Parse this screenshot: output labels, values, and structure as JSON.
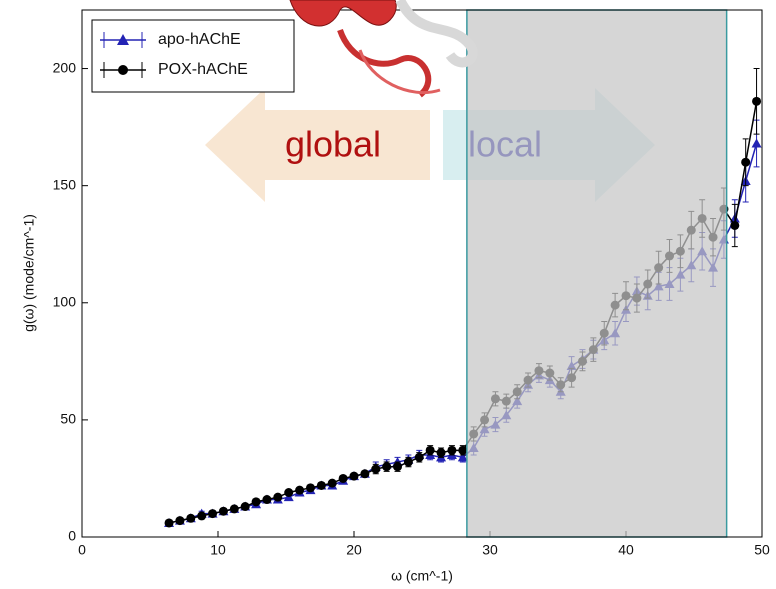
{
  "chart_data": {
    "type": "line",
    "xlabel": "ω (cm^-1)",
    "ylabel": "g(ω) (mode/cm^-1)",
    "xlim": [
      0,
      50
    ],
    "ylim": [
      0,
      225
    ],
    "xticks": [
      0,
      10,
      20,
      30,
      40,
      50
    ],
    "yticks": [
      0,
      50,
      100,
      150,
      200
    ],
    "legend": "upper left",
    "highlight_region": [
      28.3,
      47.4
    ],
    "annotations": [
      "global",
      "local"
    ],
    "x": [
      6.4,
      7.2,
      8.0,
      8.8,
      9.6,
      10.4,
      11.2,
      12.0,
      12.8,
      13.6,
      14.4,
      15.2,
      16.0,
      16.8,
      17.6,
      18.4,
      19.2,
      20.0,
      20.8,
      21.6,
      22.4,
      23.2,
      24.0,
      24.8,
      25.6,
      26.4,
      27.2,
      28.0,
      28.8,
      29.6,
      30.4,
      31.2,
      32.0,
      32.8,
      33.6,
      34.4,
      35.2,
      36.0,
      36.8,
      37.6,
      38.4,
      39.2,
      40.0,
      40.8,
      41.6,
      42.4,
      43.2,
      44.0,
      44.8,
      45.6,
      46.4,
      47.2,
      48.0,
      48.8,
      49.6
    ],
    "series": [
      {
        "name": "apo-hAChE",
        "color": "#2323b4",
        "marker": "triangle",
        "values": [
          6,
          7,
          8,
          10,
          10,
          11,
          12,
          13,
          14,
          16,
          16,
          17,
          19,
          20,
          22,
          22,
          24,
          26,
          27,
          30,
          31,
          32,
          33,
          35,
          35,
          34,
          35,
          34,
          38,
          46,
          48,
          52,
          58,
          65,
          69,
          67,
          62,
          73,
          76,
          80,
          84,
          87,
          97,
          105,
          103,
          107,
          108,
          112,
          116,
          122,
          115,
          127,
          136,
          152,
          168
        ],
        "errors": [
          1,
          1,
          1,
          1,
          1,
          1,
          1,
          1,
          1,
          1,
          1,
          1,
          1,
          1,
          1,
          1,
          1,
          1,
          1,
          2,
          2,
          2,
          2,
          2,
          2,
          2,
          2,
          2,
          3,
          3,
          3,
          3,
          3,
          3,
          3,
          3,
          3,
          4,
          4,
          4,
          4,
          5,
          5,
          6,
          6,
          6,
          7,
          7,
          7,
          8,
          8,
          8,
          8,
          9,
          10
        ]
      },
      {
        "name": "POX-hAChE",
        "color": "#000000",
        "marker": "circle",
        "values": [
          6,
          7,
          8,
          9,
          10,
          11,
          12,
          13,
          15,
          16,
          17,
          19,
          20,
          21,
          22,
          23,
          25,
          26,
          27,
          29,
          30,
          30,
          32,
          34,
          37,
          36,
          37,
          37,
          44,
          50,
          59,
          58,
          62,
          67,
          71,
          70,
          65,
          68,
          75,
          80,
          87,
          99,
          103,
          102,
          108,
          115,
          120,
          122,
          131,
          136,
          128,
          140,
          133,
          160,
          186
        ],
        "errors": [
          1,
          1,
          1,
          1,
          1,
          1,
          1,
          1,
          1,
          1,
          1,
          1,
          1,
          1,
          1,
          1,
          1,
          1,
          1,
          2,
          2,
          2,
          2,
          2,
          2,
          2,
          2,
          2,
          3,
          3,
          3,
          3,
          3,
          3,
          3,
          3,
          3,
          4,
          4,
          5,
          5,
          5,
          6,
          6,
          6,
          7,
          7,
          7,
          8,
          8,
          8,
          9,
          9,
          10,
          14
        ]
      }
    ]
  }
}
